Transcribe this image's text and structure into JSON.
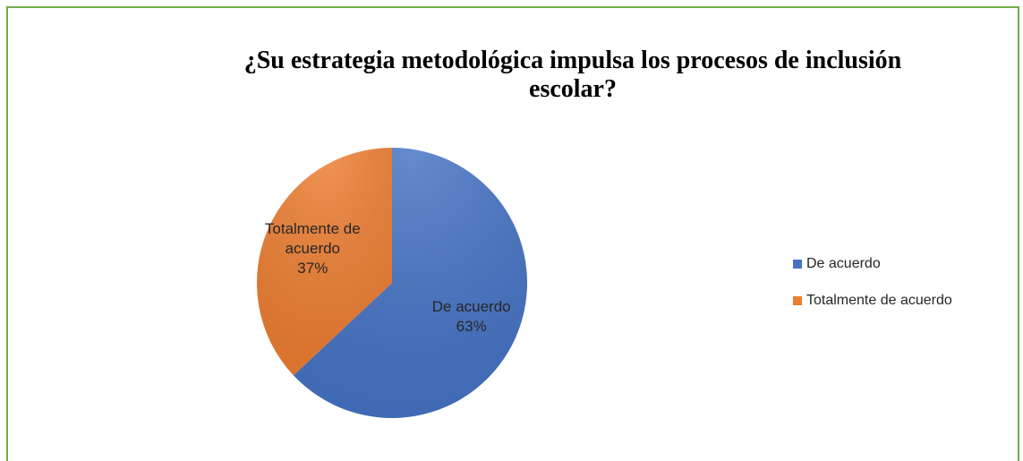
{
  "chart_data": {
    "type": "pie",
    "title": "¿Su estrategia metodológica impulsa los procesos de inclusión escolar?",
    "categories": [
      "De acuerdo",
      "Totalmente de acuerdo"
    ],
    "values": [
      63,
      37
    ],
    "value_labels": [
      "63%",
      "37%"
    ],
    "colors": [
      "#4472c4",
      "#ed7d31"
    ],
    "legend": "right"
  }
}
